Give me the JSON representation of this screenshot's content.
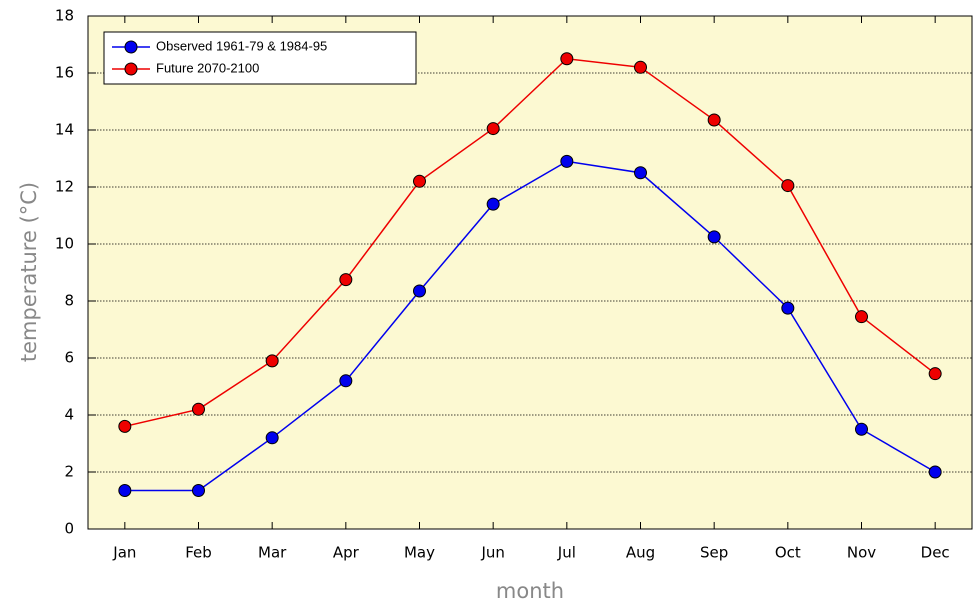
{
  "chart_data": {
    "type": "line",
    "x_label": "month",
    "y_label": "temperature (°C)",
    "categories": [
      "Jan",
      "Feb",
      "Mar",
      "Apr",
      "May",
      "Jun",
      "Jul",
      "Aug",
      "Sep",
      "Oct",
      "Nov",
      "Dec"
    ],
    "series": [
      {
        "name": "Observed 1961-79 & 1984-95",
        "color": "#0000ee",
        "values": [
          1.35,
          1.35,
          3.2,
          5.2,
          8.35,
          11.4,
          12.9,
          12.5,
          10.25,
          7.75,
          3.5,
          2.0
        ]
      },
      {
        "name": "Future 2070-2100",
        "color": "#ee0000",
        "values": [
          3.6,
          4.2,
          5.9,
          8.75,
          12.2,
          14.05,
          16.5,
          16.2,
          14.35,
          12.05,
          7.45,
          5.45
        ]
      }
    ],
    "ylim": [
      0,
      18
    ],
    "yticks": [
      0,
      2,
      4,
      6,
      8,
      10,
      12,
      14,
      16,
      18
    ],
    "grid": true,
    "legend": "upper left",
    "background": "#fcf9d2"
  }
}
